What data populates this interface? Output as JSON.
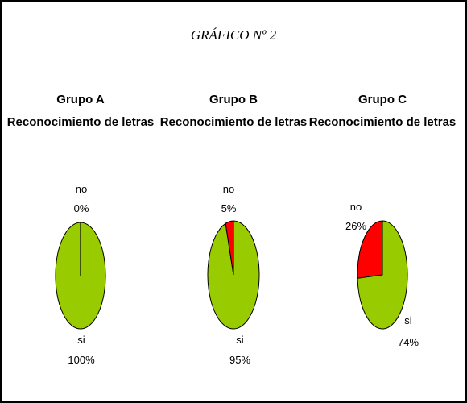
{
  "title": "GRÁFICO Nº 2",
  "colors": {
    "si": "#99CC00",
    "no": "#FF0000",
    "outline": "#000000"
  },
  "chart_data": [
    {
      "type": "pie",
      "title": "Grupo A",
      "subtitle": "Reconocimiento de letras",
      "slices": [
        {
          "label": "no",
          "value": 0,
          "display": "0%"
        },
        {
          "label": "si",
          "value": 100,
          "display": "100%"
        }
      ]
    },
    {
      "type": "pie",
      "title": "Grupo B",
      "subtitle": "Reconocimiento de letras",
      "slices": [
        {
          "label": "no",
          "value": 5,
          "display": "5%"
        },
        {
          "label": "si",
          "value": 95,
          "display": "95%"
        }
      ]
    },
    {
      "type": "pie",
      "title": "Grupo C",
      "subtitle": "Reconocimiento de letras",
      "slices": [
        {
          "label": "no",
          "value": 26,
          "display": "26%"
        },
        {
          "label": "si",
          "value": 74,
          "display": "74%"
        }
      ]
    }
  ]
}
